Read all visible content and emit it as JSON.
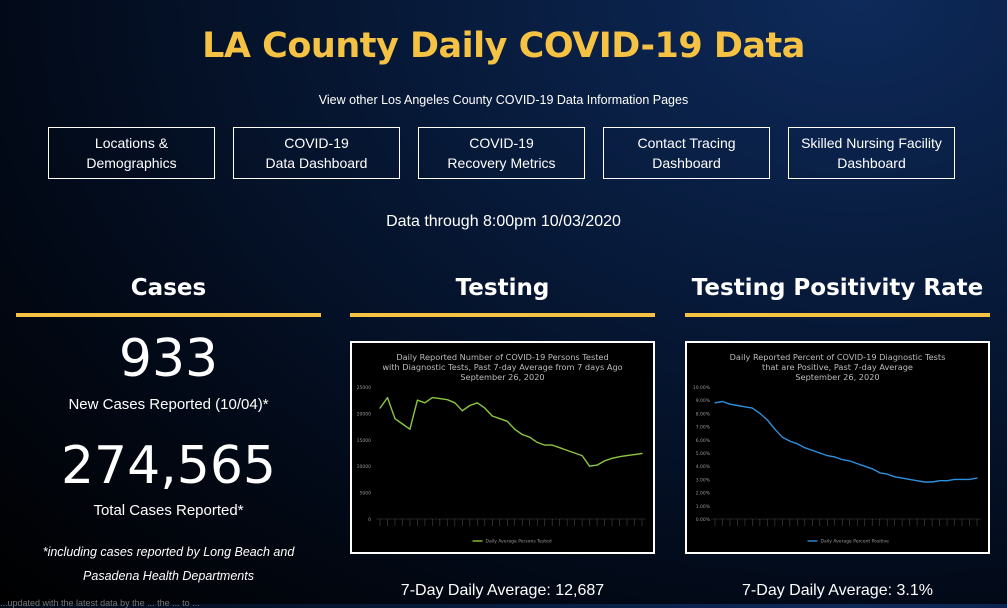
{
  "header": {
    "title": "LA County Daily COVID-19 Data",
    "subtitle": "View other Los Angeles County COVID-19 Data Information Pages"
  },
  "nav": [
    {
      "label": "Locations &\nDemographics"
    },
    {
      "label": "COVID-19\nData Dashboard"
    },
    {
      "label": "COVID-19\nRecovery Metrics"
    },
    {
      "label": "Contact Tracing\nDashboard"
    },
    {
      "label": "Skilled Nursing Facility\nDashboard"
    }
  ],
  "data_through": "Data through 8:00pm 10/03/2020",
  "cases": {
    "heading": "Cases",
    "new_cases": "933",
    "new_cases_label": "New Cases Reported (10/04)*",
    "total_cases": "274,565",
    "total_cases_label": "Total Cases Reported*",
    "note_line1": "*including cases reported by Long Beach and",
    "note_line2": "Pasadena Health Departments"
  },
  "testing": {
    "heading": "Testing",
    "average": "7-Day Daily Average: 12,687"
  },
  "positivity": {
    "heading": "Testing Positivity Rate",
    "average": "7-Day Daily Average: 3.1%"
  },
  "chart_data": [
    {
      "type": "line",
      "title": "Daily Reported Number of COVID-19 Persons Tested with Diagnostic Tests, Past 7-day Average from 7 days Ago",
      "subtitle": "September 26, 2020",
      "color": "#8dc63f",
      "ylim": [
        0,
        25000
      ],
      "yticks": [
        "25000",
        "20000",
        "15000",
        "10000",
        "5000",
        "0"
      ],
      "series": [
        {
          "name": "Daily Average Persons Tested",
          "values": [
            21000,
            23000,
            19000,
            18000,
            17000,
            22500,
            22000,
            23000,
            22800,
            22600,
            22000,
            20500,
            21500,
            22000,
            21000,
            19500,
            19000,
            18500,
            17000,
            16000,
            15500,
            14500,
            14000,
            14000,
            13500,
            13000,
            12500,
            12000,
            10000,
            10200,
            11000,
            11500,
            11800,
            12000,
            12200,
            12400
          ]
        }
      ]
    },
    {
      "type": "line",
      "title": "Daily Reported Percent of COVID-19 Diagnostic Tests that are Positive, Past 7-day Average",
      "subtitle": "September 26, 2020",
      "color": "#2f8fdb",
      "ylim": [
        0,
        10
      ],
      "yticks": [
        "10.00%",
        "9.00%",
        "8.00%",
        "7.00%",
        "6.00%",
        "5.00%",
        "4.00%",
        "3.00%",
        "2.00%",
        "1.00%",
        "0.00%"
      ],
      "series": [
        {
          "name": "Daily Average Percent Positive",
          "values": [
            8.8,
            8.9,
            8.7,
            8.6,
            8.5,
            8.4,
            8.0,
            7.5,
            6.8,
            6.2,
            5.9,
            5.7,
            5.4,
            5.2,
            5.0,
            4.8,
            4.7,
            4.5,
            4.4,
            4.2,
            4.0,
            3.8,
            3.5,
            3.4,
            3.2,
            3.1,
            3.0,
            2.9,
            2.8,
            2.8,
            2.9,
            2.9,
            3.0,
            3.0,
            3.0,
            3.1
          ]
        }
      ]
    }
  ],
  "footer_text": "...updated with the latest data by the ... the ... to ..."
}
